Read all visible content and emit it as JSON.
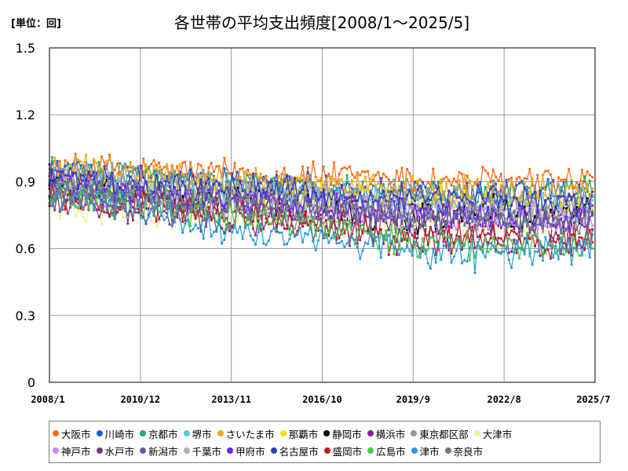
{
  "header": {
    "unit": "[単位：回]",
    "title": "各世帯の平均支出頻度[2008/1～2025/5]"
  },
  "chart_data": {
    "type": "line",
    "title": "各世帯の平均支出頻度[2008/1～2025/5]",
    "unit_label": "[単位：回]",
    "xlabel": "",
    "ylabel": "",
    "ylim": [
      0,
      1.5
    ],
    "y_ticks": [
      "0",
      "0.3",
      "0.6",
      "0.9",
      "1.2",
      "1.5"
    ],
    "x_range": [
      "2008/1",
      "2025/7"
    ],
    "x_ticks": [
      "2008/1",
      "2010/12",
      "2013/11",
      "2016/10",
      "2019/9",
      "2022/8",
      "2025/7"
    ],
    "grid": true,
    "legend_position": "bottom",
    "series": [
      {
        "name": "大阪市",
        "color": "#ff6a13",
        "values": [
          0.97,
          0.96,
          0.96,
          0.95,
          0.95,
          0.94,
          0.94,
          0.93,
          0.93,
          0.92,
          0.92,
          0.91,
          0.91,
          0.9,
          0.9,
          0.9,
          0.9,
          0.91
        ]
      },
      {
        "name": "川崎市",
        "color": "#1f5fd6",
        "values": [
          0.95,
          0.94,
          0.93,
          0.92,
          0.91,
          0.9,
          0.89,
          0.88,
          0.87,
          0.87,
          0.86,
          0.85,
          0.85,
          0.84,
          0.84,
          0.84,
          0.84,
          0.85
        ]
      },
      {
        "name": "京都市",
        "color": "#2aa876",
        "values": [
          0.94,
          0.93,
          0.92,
          0.91,
          0.9,
          0.89,
          0.88,
          0.88,
          0.87,
          0.86,
          0.86,
          0.85,
          0.85,
          0.84,
          0.84,
          0.84,
          0.85,
          0.88
        ]
      },
      {
        "name": "堺市",
        "color": "#56c8f0",
        "values": [
          0.9,
          0.89,
          0.88,
          0.87,
          0.86,
          0.85,
          0.85,
          0.84,
          0.83,
          0.82,
          0.81,
          0.8,
          0.79,
          0.78,
          0.78,
          0.77,
          0.77,
          0.78
        ]
      },
      {
        "name": "さいたま市",
        "color": "#f0a818",
        "values": [
          0.96,
          0.95,
          0.94,
          0.93,
          0.92,
          0.91,
          0.9,
          0.89,
          0.89,
          0.88,
          0.87,
          0.87,
          0.86,
          0.86,
          0.85,
          0.85,
          0.85,
          0.86
        ]
      },
      {
        "name": "那覇市",
        "color": "#ffdc00",
        "values": [
          0.88,
          0.87,
          0.86,
          0.86,
          0.85,
          0.84,
          0.84,
          0.83,
          0.83,
          0.82,
          0.82,
          0.81,
          0.81,
          0.8,
          0.8,
          0.8,
          0.8,
          0.8
        ]
      },
      {
        "name": "静岡市",
        "color": "#000000",
        "values": [
          0.88,
          0.87,
          0.85,
          0.84,
          0.83,
          0.83,
          0.82,
          0.8,
          0.78,
          0.76,
          0.75,
          0.74,
          0.73,
          0.75,
          0.78,
          0.74,
          0.75,
          0.8
        ]
      },
      {
        "name": "横浜市",
        "color": "#8b1a9b",
        "values": [
          0.9,
          0.88,
          0.86,
          0.84,
          0.82,
          0.8,
          0.79,
          0.78,
          0.77,
          0.76,
          0.75,
          0.74,
          0.73,
          0.72,
          0.72,
          0.71,
          0.7,
          0.72
        ]
      },
      {
        "name": "東京都区部",
        "color": "#8c96a0",
        "values": [
          0.94,
          0.93,
          0.92,
          0.91,
          0.9,
          0.89,
          0.88,
          0.87,
          0.86,
          0.85,
          0.85,
          0.84,
          0.83,
          0.83,
          0.82,
          0.82,
          0.82,
          0.83
        ]
      },
      {
        "name": "大津市",
        "color": "#f0f0a0",
        "values": [
          0.78,
          0.77,
          0.77,
          0.76,
          0.75,
          0.73,
          0.74,
          0.73,
          0.73,
          0.72,
          0.72,
          0.71,
          0.71,
          0.7,
          0.7,
          0.7,
          0.7,
          0.7
        ]
      },
      {
        "name": "神戸市",
        "color": "#c78cf0",
        "values": [
          0.85,
          0.84,
          0.83,
          0.82,
          0.82,
          0.81,
          0.8,
          0.79,
          0.79,
          0.78,
          0.77,
          0.76,
          0.76,
          0.75,
          0.75,
          0.74,
          0.74,
          0.75
        ]
      },
      {
        "name": "水戸市",
        "color": "#7a3a7a",
        "values": [
          0.82,
          0.8,
          0.79,
          0.77,
          0.76,
          0.74,
          0.73,
          0.72,
          0.7,
          0.69,
          0.68,
          0.67,
          0.66,
          0.65,
          0.65,
          0.64,
          0.64,
          0.65
        ]
      },
      {
        "name": "新潟市",
        "color": "#6a5a9a",
        "values": [
          0.86,
          0.85,
          0.84,
          0.83,
          0.82,
          0.81,
          0.8,
          0.79,
          0.78,
          0.77,
          0.76,
          0.75,
          0.75,
          0.74,
          0.74,
          0.73,
          0.73,
          0.74
        ]
      },
      {
        "name": "千葉市",
        "color": "#a8b4bc",
        "values": [
          0.9,
          0.89,
          0.88,
          0.87,
          0.86,
          0.85,
          0.84,
          0.83,
          0.82,
          0.81,
          0.8,
          0.8,
          0.79,
          0.79,
          0.78,
          0.78,
          0.78,
          0.79
        ]
      },
      {
        "name": "甲府市",
        "color": "#6a2ae8",
        "values": [
          0.9,
          0.88,
          0.87,
          0.85,
          0.84,
          0.82,
          0.81,
          0.8,
          0.79,
          0.78,
          0.77,
          0.76,
          0.75,
          0.74,
          0.73,
          0.73,
          0.72,
          0.73
        ]
      },
      {
        "name": "名古屋市",
        "color": "#3a3ab8",
        "values": [
          0.93,
          0.92,
          0.91,
          0.9,
          0.89,
          0.88,
          0.87,
          0.86,
          0.85,
          0.85,
          0.84,
          0.83,
          0.83,
          0.82,
          0.82,
          0.81,
          0.81,
          0.82
        ]
      },
      {
        "name": "盛岡市",
        "color": "#c0182a",
        "values": [
          0.83,
          0.82,
          0.8,
          0.79,
          0.77,
          0.76,
          0.74,
          0.73,
          0.71,
          0.69,
          0.67,
          0.62,
          0.64,
          0.65,
          0.63,
          0.62,
          0.6,
          0.62
        ]
      },
      {
        "name": "広島市",
        "color": "#4ac84a",
        "values": [
          0.84,
          0.83,
          0.81,
          0.8,
          0.78,
          0.77,
          0.75,
          0.73,
          0.71,
          0.69,
          0.66,
          0.64,
          0.63,
          0.62,
          0.62,
          0.61,
          0.61,
          0.62
        ]
      },
      {
        "name": "津市",
        "color": "#2a9ad6",
        "values": [
          0.85,
          0.83,
          0.81,
          0.78,
          0.74,
          0.68,
          0.66,
          0.65,
          0.64,
          0.63,
          0.62,
          0.6,
          0.58,
          0.57,
          0.57,
          0.58,
          0.59,
          0.6
        ]
      },
      {
        "name": "奈良市",
        "color": "#6a7a86",
        "values": [
          0.86,
          0.85,
          0.84,
          0.83,
          0.82,
          0.81,
          0.8,
          0.79,
          0.78,
          0.77,
          0.76,
          0.75,
          0.74,
          0.74,
          0.73,
          0.73,
          0.72,
          0.73
        ]
      }
    ]
  }
}
